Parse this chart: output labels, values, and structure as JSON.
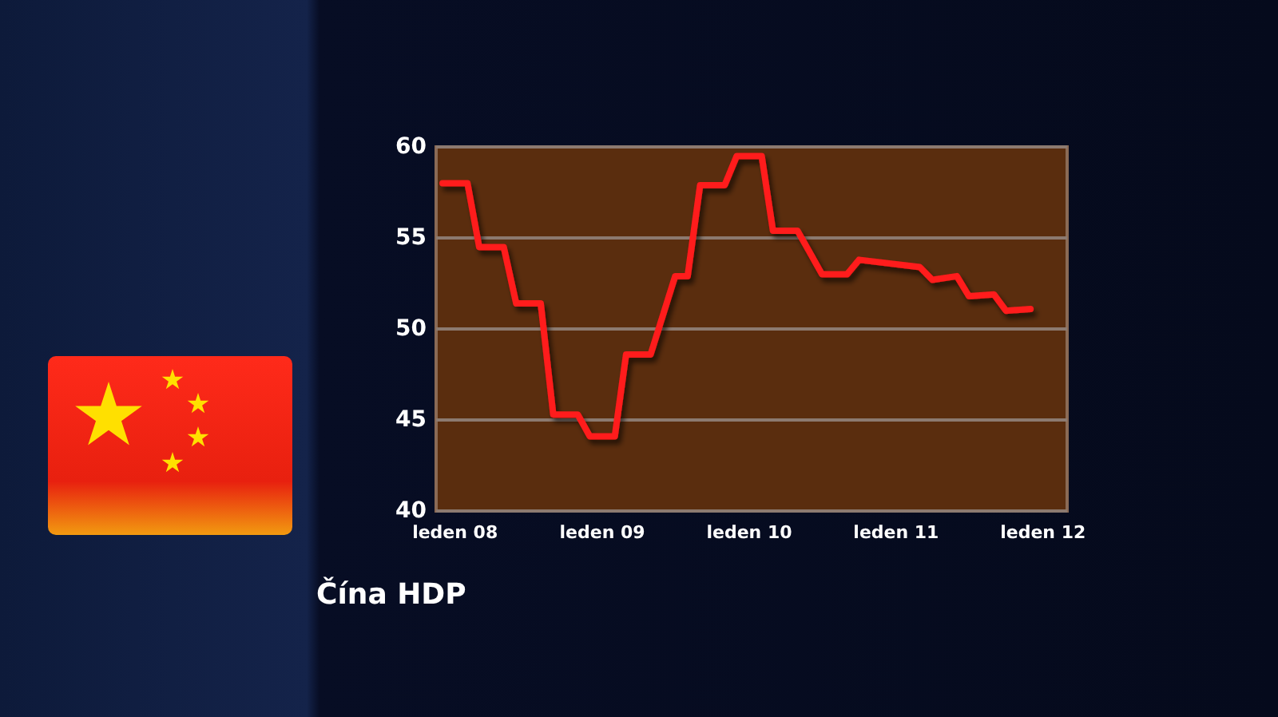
{
  "chart_data": {
    "type": "line",
    "title": "Čína HDP",
    "x": [
      "2007-12",
      "2008-02",
      "2008-03",
      "2008-05",
      "2008-06",
      "2008-08",
      "2008-09",
      "2008-11",
      "2008-12",
      "2009-02",
      "2009-03",
      "2009-05",
      "2009-07",
      "2009-08",
      "2009-09",
      "2009-11",
      "2009-12",
      "2010-02",
      "2010-03",
      "2010-05",
      "2010-07",
      "2010-09",
      "2010-10",
      "2011-03",
      "2011-04",
      "2011-06",
      "2011-07",
      "2011-09",
      "2011-10",
      "2011-12"
    ],
    "series": [
      {
        "color": "#ff1a1a",
        "values": [
          58.0,
          58.0,
          54.5,
          54.5,
          51.4,
          51.4,
          45.3,
          45.3,
          44.1,
          44.1,
          48.6,
          48.6,
          52.9,
          52.9,
          57.9,
          57.9,
          59.5,
          59.5,
          55.4,
          55.4,
          53.0,
          53.0,
          53.8,
          53.4,
          52.7,
          52.9,
          51.8,
          51.9,
          51.0,
          51.1
        ]
      }
    ],
    "xlim": [
      "2007-11-15",
      "2012-03-01"
    ],
    "xticks": [
      {
        "value": "2008-01",
        "label": "leden 08"
      },
      {
        "value": "2009-01",
        "label": "leden 09"
      },
      {
        "value": "2010-01",
        "label": "leden 10"
      },
      {
        "value": "2011-01",
        "label": "leden 11"
      },
      {
        "value": "2012-01",
        "label": "leden 12"
      }
    ],
    "ylim": [
      40,
      60
    ],
    "yticks": [
      40,
      45,
      50,
      55,
      60
    ],
    "grid": "y",
    "marker": "none",
    "line_style": "solid"
  }
}
